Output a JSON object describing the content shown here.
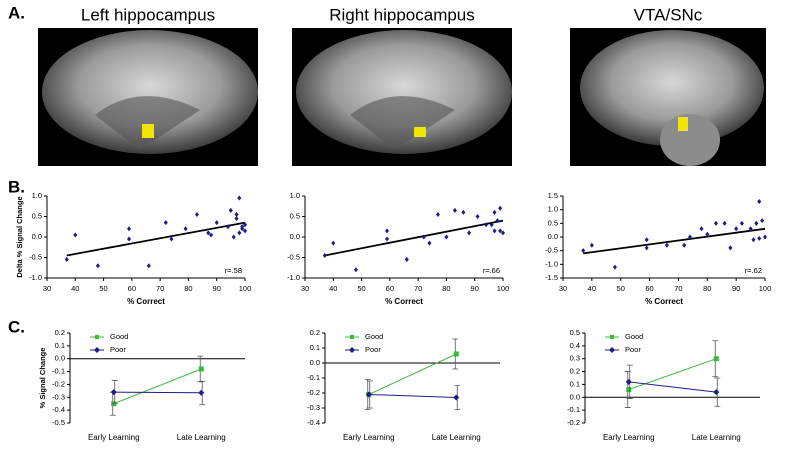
{
  "panel_labels": [
    "A.",
    "B.",
    "C."
  ],
  "columns": [
    "Left hippocampus",
    "Right hippocampus",
    "VTA/SNc"
  ],
  "chart_data": [
    {
      "type": "scatter",
      "xlabel": "% Correct",
      "ylabel": "Delta % Signal Change",
      "annotation": "r=.58",
      "color": "#1c1c8a",
      "xlim": [
        30,
        100
      ],
      "xticks": [
        30,
        40,
        50,
        60,
        70,
        80,
        90,
        100
      ],
      "ylim": [
        -1,
        1
      ],
      "yticks": [
        {
          "value": -1,
          "label": "-1.0"
        },
        -0.5,
        {
          "value": 0,
          "label": "0.0"
        },
        0.5,
        {
          "value": 1,
          "label": "1.0"
        }
      ],
      "x": [
        37,
        40,
        48,
        59,
        59,
        66,
        72,
        74,
        79,
        83,
        87,
        88,
        90,
        94,
        95,
        97,
        98,
        97,
        99,
        100,
        100,
        98,
        99,
        96
      ],
      "y": [
        -0.55,
        0.05,
        -0.7,
        0.2,
        -0.05,
        -0.7,
        0.35,
        -0.05,
        0.2,
        0.55,
        0.1,
        0.05,
        0.35,
        0.25,
        0.65,
        0.55,
        0.95,
        0.45,
        0.25,
        0.15,
        0.3,
        0.1,
        0.2,
        0.0
      ],
      "trend": {
        "x": [
          37,
          100
        ],
        "y": [
          -0.45,
          0.35
        ]
      }
    },
    {
      "type": "scatter",
      "xlabel": "% Correct",
      "annotation": "r=.66",
      "color": "#1c1c8a",
      "xlim": [
        30,
        100
      ],
      "xticks": [
        30,
        40,
        50,
        60,
        70,
        80,
        90,
        100
      ],
      "ylim": [
        -1,
        1
      ],
      "yticks": [
        {
          "value": -1,
          "label": "-1.0"
        },
        -0.5,
        {
          "value": 0,
          "label": "0.0"
        },
        0.5,
        {
          "value": 1,
          "label": "1.0"
        }
      ],
      "x": [
        37,
        40,
        48,
        59,
        59,
        66,
        72,
        74,
        77,
        80,
        83,
        86,
        88,
        91,
        94,
        97,
        98,
        99,
        100,
        97,
        96,
        99
      ],
      "y": [
        -0.45,
        -0.15,
        -0.8,
        0.15,
        -0.05,
        -0.55,
        0.0,
        -0.15,
        0.55,
        0.0,
        0.65,
        0.6,
        0.1,
        0.5,
        0.3,
        0.6,
        0.4,
        0.15,
        0.1,
        0.15,
        0.3,
        0.7
      ],
      "trend": {
        "x": [
          37,
          100
        ],
        "y": [
          -0.45,
          0.4
        ]
      }
    },
    {
      "type": "scatter",
      "xlabel": "% Correct",
      "annotation": "r=.62",
      "color": "#1c1c8a",
      "xlim": [
        30,
        100
      ],
      "xticks": [
        30,
        40,
        50,
        60,
        70,
        80,
        90,
        100
      ],
      "ylim": [
        -1.5,
        1.5
      ],
      "yticks": [
        -1.5,
        {
          "value": -1,
          "label": "-1.0"
        },
        -0.5,
        {
          "value": 0,
          "label": "0.0"
        },
        0.5,
        {
          "value": 1,
          "label": "1.0"
        },
        1.5
      ],
      "x": [
        37,
        40,
        48,
        59,
        59,
        66,
        72,
        74,
        78,
        80,
        83,
        86,
        88,
        90,
        92,
        95,
        97,
        98,
        99,
        96,
        100,
        98
      ],
      "y": [
        -0.5,
        -0.3,
        -1.1,
        -0.1,
        -0.4,
        -0.3,
        -0.3,
        0.0,
        0.3,
        0.1,
        0.5,
        0.5,
        -0.4,
        0.3,
        0.5,
        0.3,
        0.5,
        1.3,
        0.6,
        -0.1,
        0.0,
        -0.05
      ],
      "trend": {
        "x": [
          37,
          100
        ],
        "y": [
          -0.6,
          0.3
        ]
      }
    },
    {
      "type": "line",
      "ylabel": "% Signal Change",
      "categories": [
        "Early Learning",
        "Late Learning"
      ],
      "ylim": [
        -0.5,
        0.2
      ],
      "yticks": [
        -0.5,
        -0.4,
        -0.3,
        -0.2,
        -0.1,
        {
          "value": 0,
          "label": "0.0"
        },
        0.1,
        0.2
      ],
      "series": [
        {
          "name": "Good",
          "color": "#3cb83c",
          "values": [
            -0.35,
            -0.08
          ],
          "errors": [
            0.09,
            0.1
          ]
        },
        {
          "name": "Poor",
          "color": "#1c1c8a",
          "values": [
            -0.26,
            -0.265
          ],
          "errors": [
            0.09,
            0.09
          ]
        }
      ]
    },
    {
      "type": "line",
      "categories": [
        "Early Learning",
        "Late Learning"
      ],
      "ylim": [
        -0.4,
        0.2
      ],
      "yticks": [
        -0.4,
        -0.3,
        -0.2,
        -0.1,
        {
          "value": 0,
          "label": "0.0"
        },
        0.1,
        0.2
      ],
      "series": [
        {
          "name": "Good",
          "color": "#3cb83c",
          "values": [
            -0.21,
            0.06
          ],
          "errors": [
            0.1,
            0.1
          ]
        },
        {
          "name": "Poor",
          "color": "#1c1c8a",
          "values": [
            -0.21,
            -0.23
          ],
          "errors": [
            0.09,
            0.08
          ]
        }
      ]
    },
    {
      "type": "line",
      "categories": [
        "Early Learning",
        "Late Learning"
      ],
      "ylim": [
        -0.2,
        0.5
      ],
      "yticks": [
        -0.2,
        -0.1,
        {
          "value": 0,
          "label": "0.0"
        },
        0.1,
        0.2,
        0.3,
        0.4,
        0.5
      ],
      "series": [
        {
          "name": "Good",
          "color": "#3cb83c",
          "values": [
            0.06,
            0.3
          ],
          "errors": [
            0.14,
            0.14
          ]
        },
        {
          "name": "Poor",
          "color": "#1c1c8a",
          "values": [
            0.12,
            0.04
          ],
          "errors": [
            0.13,
            0.11
          ]
        }
      ]
    }
  ]
}
